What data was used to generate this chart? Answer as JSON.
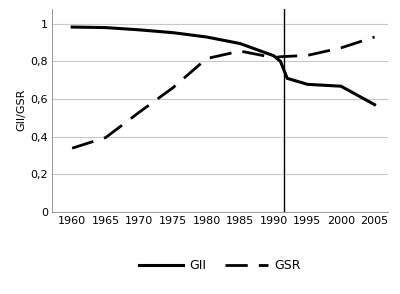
{
  "GII_x": [
    1960,
    1965,
    1970,
    1975,
    1980,
    1985,
    1990,
    1991,
    1992,
    1995,
    2000,
    2005
  ],
  "GII_y": [
    0.983,
    0.98,
    0.968,
    0.953,
    0.93,
    0.895,
    0.83,
    0.8,
    0.71,
    0.678,
    0.668,
    0.57
  ],
  "GSR_x": [
    1960,
    1965,
    1970,
    1975,
    1980,
    1985,
    1990,
    1991,
    1995,
    2000,
    2005
  ],
  "GSR_y": [
    0.338,
    0.395,
    0.53,
    0.66,
    0.815,
    0.855,
    0.82,
    0.825,
    0.832,
    0.872,
    0.93
  ],
  "vline_x": 1991.5,
  "ylabel": "GII/GSR",
  "ylim": [
    0,
    1.08
  ],
  "yticks": [
    0,
    0.2,
    0.4,
    0.6,
    0.8,
    1.0
  ],
  "ytick_labels": [
    "0",
    "0,2",
    "0,4",
    "0,6",
    "0,8",
    "1"
  ],
  "xlim": [
    1957,
    2007
  ],
  "xticks": [
    1960,
    1965,
    1970,
    1975,
    1980,
    1985,
    1990,
    1995,
    2000,
    2005
  ],
  "legend_GII": "GII",
  "legend_GSR": "GSR",
  "line_color": "#000000",
  "bg_color": "#ffffff",
  "grid_color": "#c8c8c8"
}
